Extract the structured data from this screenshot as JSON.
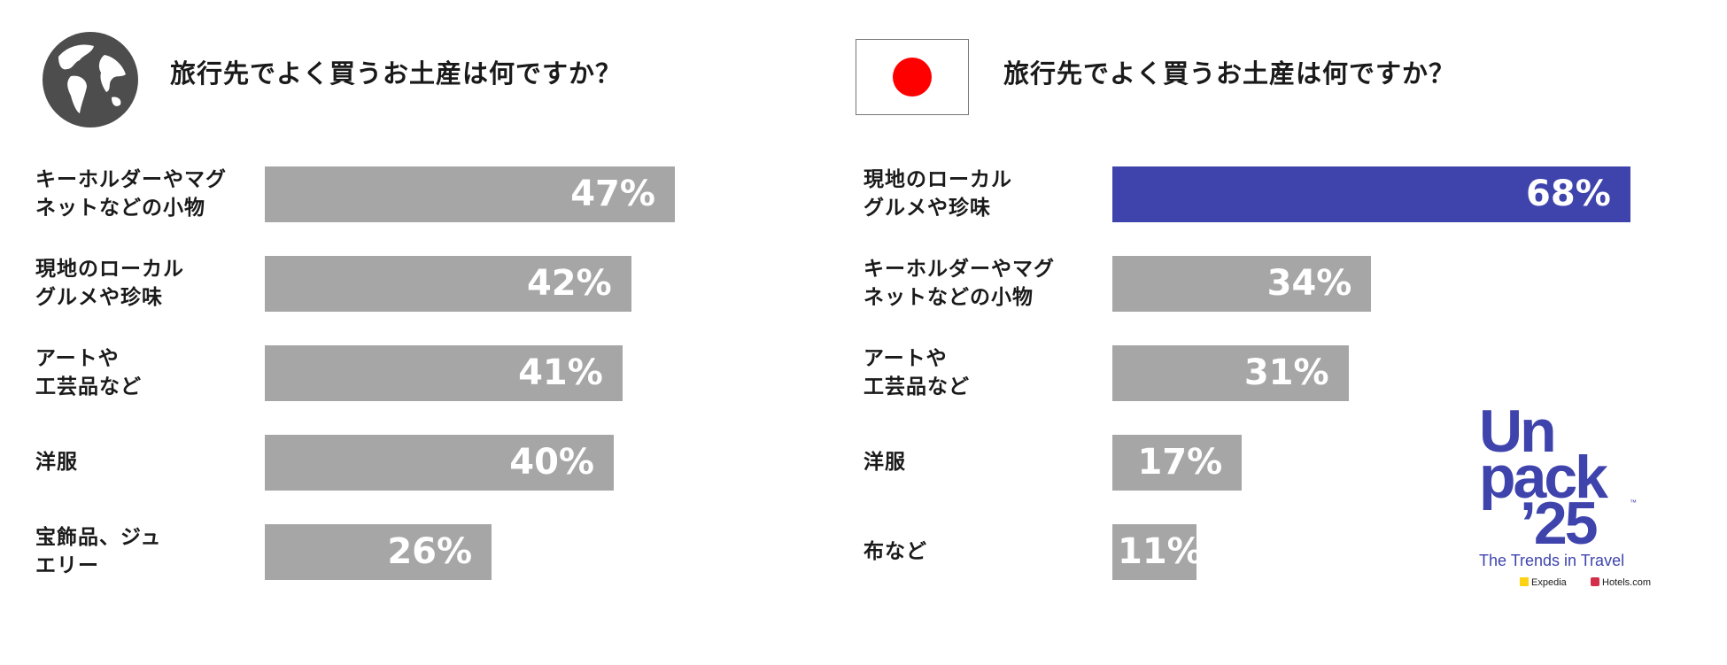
{
  "colors": {
    "bar_default": "#a6a6a6",
    "bar_highlight": "#3f44ad",
    "flag_red": "#ff0000",
    "globe_dark": "#4d4d4d",
    "brand_purple": "#3f44ad"
  },
  "icons": {
    "left": "globe-icon",
    "right": "japan-flag-icon"
  },
  "chart_data": [
    {
      "type": "bar",
      "orientation": "horizontal",
      "title": "旅行先でよく買うお土産は何ですか？",
      "categories": [
        "キーホルダーやマグ\nネットなどの小物",
        "現地のローカル\nグルメや珍味",
        "アートや\n工芸品など",
        "洋服",
        "宝飾品、ジュ\nエリー"
      ],
      "values": [
        47,
        42,
        41,
        40,
        26
      ],
      "value_labels": [
        "47%",
        "42%",
        "41%",
        "40%",
        "26%"
      ],
      "highlight": [
        false,
        false,
        false,
        false,
        false
      ],
      "xlim": [
        0,
        100
      ],
      "grid": false
    },
    {
      "type": "bar",
      "orientation": "horizontal",
      "title": "旅行先でよく買うお土産は何ですか？",
      "categories": [
        "現地のローカル\nグルメや珍味",
        "キーホルダーやマグ\nネットなどの小物",
        "アートや\n工芸品など",
        "洋服",
        "布など"
      ],
      "values": [
        68,
        34,
        31,
        17,
        11
      ],
      "value_labels": [
        "68%",
        "34%",
        "31%",
        "17%",
        "11%"
      ],
      "highlight": [
        true,
        false,
        false,
        false,
        false
      ],
      "xlim": [
        0,
        100
      ],
      "grid": false
    }
  ],
  "logo": {
    "line1": "Un",
    "line2": "pack",
    "line3": "’25",
    "tm": "™",
    "tagline": "The Trends in Travel",
    "brand1": "Expedia",
    "brand2": "Hotels.com"
  }
}
